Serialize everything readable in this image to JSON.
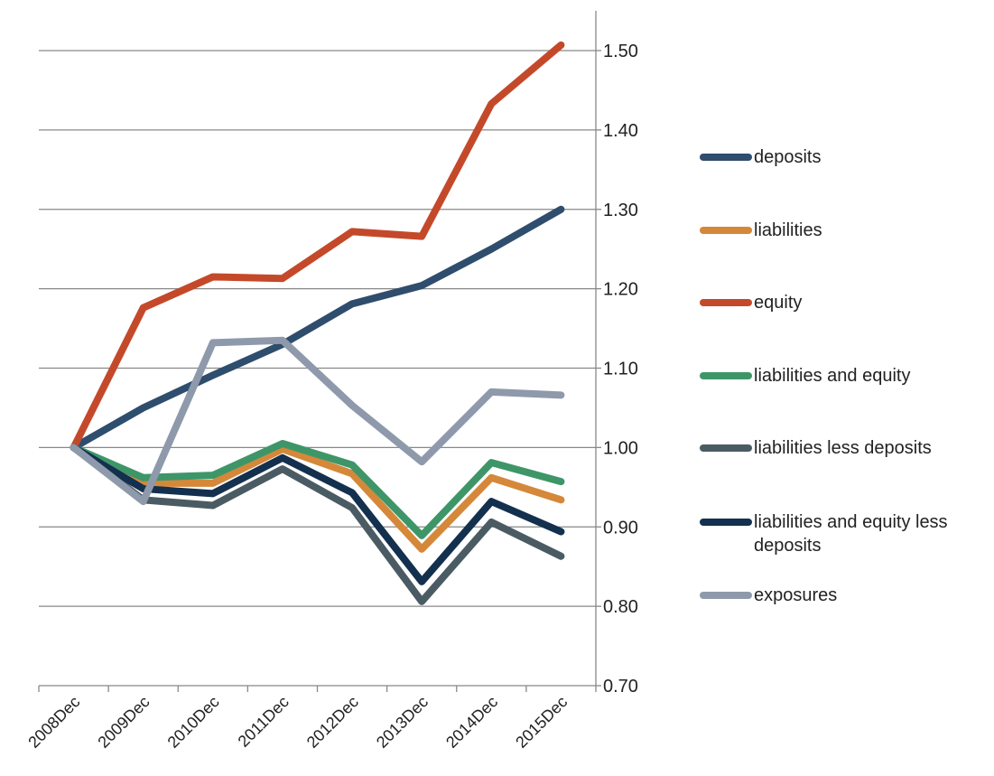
{
  "chart_data": {
    "type": "line",
    "categories": [
      "2008Dec",
      "2009Dec",
      "2010Dec",
      "2011Dec",
      "2012Dec",
      "2013Dec",
      "2014Dec",
      "2015Dec"
    ],
    "series": [
      {
        "name": "deposits",
        "color": "#2f4d6d",
        "values": [
          1.0,
          1.05,
          1.091,
          1.13,
          1.181,
          1.204,
          1.25,
          1.3
        ]
      },
      {
        "name": "liabilities",
        "color": "#d5883a",
        "values": [
          1.0,
          0.955,
          0.955,
          0.998,
          0.967,
          0.872,
          0.962,
          0.934
        ]
      },
      {
        "name": "equity",
        "color": "#c4492a",
        "values": [
          1.0,
          1.176,
          1.215,
          1.213,
          1.272,
          1.266,
          1.433,
          1.507
        ]
      },
      {
        "name": "liabilities and equity",
        "color": "#3e9668",
        "values": [
          1.0,
          0.962,
          0.965,
          1.005,
          0.978,
          0.889,
          0.981,
          0.957
        ]
      },
      {
        "name": "liabilities less deposits",
        "color": "#4b5b63",
        "values": [
          1.0,
          0.934,
          0.927,
          0.973,
          0.924,
          0.806,
          0.906,
          0.863
        ]
      },
      {
        "name": "liabilities and equity less deposits",
        "color": "#14304f",
        "values": [
          1.0,
          0.948,
          0.942,
          0.987,
          0.943,
          0.831,
          0.932,
          0.894
        ]
      },
      {
        "name": "exposures",
        "color": "#8e9aab",
        "values": [
          1.0,
          0.932,
          1.132,
          1.135,
          1.053,
          0.982,
          1.07,
          1.066
        ]
      }
    ],
    "ylim": [
      0.7,
      1.5
    ],
    "yticks": [
      {
        "value": 0.7,
        "label": "0.70"
      },
      {
        "value": 0.8,
        "label": "0.80"
      },
      {
        "value": 0.9,
        "label": "0.90"
      },
      {
        "value": 1.0,
        "label": "1.00"
      },
      {
        "value": 1.1,
        "label": "1.10"
      },
      {
        "value": 1.2,
        "label": "1.20"
      },
      {
        "value": 1.3,
        "label": "1.30"
      },
      {
        "value": 1.4,
        "label": "1.40"
      },
      {
        "value": 1.5,
        "label": "1.50"
      }
    ],
    "grid": true,
    "legend": "right"
  }
}
